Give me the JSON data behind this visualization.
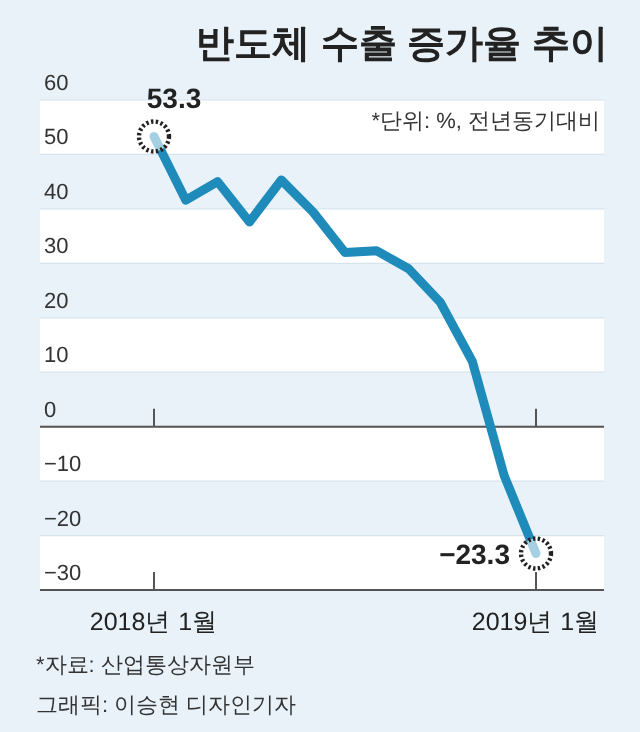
{
  "chart_data": {
    "type": "line",
    "title": "반도체 수출 증가율 추이",
    "subtitle": "*단위: %, 전년동기대비",
    "categories": [
      "2018년 1월",
      null,
      null,
      null,
      null,
      null,
      null,
      null,
      null,
      null,
      null,
      null,
      "2019년 1월"
    ],
    "series": [
      {
        "color": "#1e8bbb",
        "values": [
          53.3,
          41.6,
          45,
          37.6,
          45.3,
          39.4,
          32,
          32.3,
          29,
          22.8,
          12,
          -9,
          -23.3
        ]
      }
    ],
    "ylim": [
      -30,
      60
    ],
    "yticks": [
      {
        "value": 60,
        "label": "60"
      },
      {
        "value": 50,
        "label": "50"
      },
      {
        "value": 40,
        "label": "40"
      },
      {
        "value": 30,
        "label": "30"
      },
      {
        "value": 20,
        "label": "20"
      },
      {
        "value": 10,
        "label": "10"
      },
      {
        "value": 0,
        "label": "0"
      },
      {
        "value": -10,
        "label": "−10"
      },
      {
        "value": -20,
        "label": "−20"
      },
      {
        "value": -30,
        "label": "−30"
      }
    ],
    "grid": "y",
    "marker": "none",
    "line_style": "solid",
    "annotations": [
      {
        "text": "53.3",
        "x": "2018년 1월",
        "y": 53.3
      },
      {
        "text": "−23.3",
        "x": "2019년 1월",
        "y": -23.3
      },
      "*자료: 산업통상자원부",
      "그래픽: 이승현 디자인기자"
    ]
  }
}
